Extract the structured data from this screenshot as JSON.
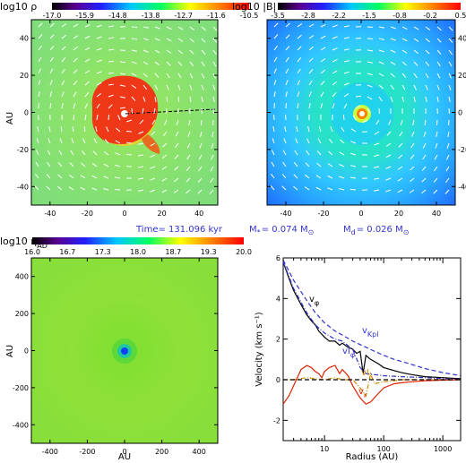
{
  "header": {
    "time_label": "Time= 131.096 kyr",
    "mstar_label": "M",
    "mstar_sub": "*",
    "mstar_value": "= 0.074 M",
    "mstar_sun": "⊙",
    "mdisk_label": "M",
    "mdisk_sub": "d",
    "mdisk_value": "= 0.026 M",
    "mdisk_sun": "⊙"
  },
  "colors": {
    "accent_text": "#3333cc"
  },
  "chart_data": [
    {
      "type": "heatmap",
      "title": "log10 ρ",
      "colorbar_ticks": [
        "-17.0",
        "-15.9",
        "-14.8",
        "-13.8",
        "-12.7",
        "-11.6",
        "-10.5"
      ],
      "colorbar_range": [
        -17.0,
        -10.5
      ],
      "xlim": [
        -50,
        50
      ],
      "ylim": [
        -50,
        50
      ],
      "xticks": [
        "-40",
        "-20",
        "0",
        "20",
        "40"
      ],
      "yticks": [
        "-40",
        "-20",
        "0",
        "20",
        "40"
      ],
      "ylabel": "AU",
      "overlay": "velocity arrows"
    },
    {
      "type": "heatmap",
      "title": "log10 |B|",
      "colorbar_ticks": [
        "-3.5",
        "-2.8",
        "-2.2",
        "-1.5",
        "-0.8",
        "-0.2",
        "0.5"
      ],
      "colorbar_range": [
        -3.5,
        0.5
      ],
      "xlim": [
        -50,
        50
      ],
      "ylim": [
        -50,
        50
      ],
      "xticks": [
        "-40",
        "-20",
        "0",
        "20",
        "40"
      ],
      "yticks": [
        "-40",
        "-20",
        "0",
        "20",
        "40"
      ],
      "overlay": "magnetic field arrows"
    },
    {
      "type": "heatmap",
      "title": "log10 η",
      "title_sub": "AD",
      "colorbar_ticks": [
        "16.0",
        "16.7",
        "17.3",
        "18.0",
        "18.7",
        "19.3",
        "20.0"
      ],
      "colorbar_range": [
        16.0,
        20.0
      ],
      "xlim": [
        -500,
        500
      ],
      "ylim": [
        -500,
        500
      ],
      "xticks": [
        "-400",
        "-200",
        "0",
        "200",
        "400"
      ],
      "yticks": [
        "-400",
        "-200",
        "0",
        "200",
        "400"
      ],
      "xlabel": "AU",
      "ylabel": "AU"
    },
    {
      "type": "line",
      "xlabel": "Radius (AU)",
      "ylabel": "Velocity (km s⁻¹)",
      "xscale": "log",
      "xlim": [
        2,
        2000
      ],
      "ylim": [
        -3,
        6
      ],
      "xticks": [
        10,
        100,
        1000
      ],
      "yticks": [
        -2,
        0,
        2,
        4,
        6
      ],
      "series": [
        {
          "name": "vφ",
          "color": "#000000",
          "dash": "solid",
          "x": [
            2,
            2.5,
            3,
            4,
            5,
            6,
            7,
            8,
            10,
            12,
            15,
            18,
            20,
            25,
            30,
            35,
            40,
            45,
            50,
            60,
            80,
            100,
            150,
            200,
            300,
            500,
            1000,
            2000
          ],
          "y": [
            5.8,
            5.0,
            4.4,
            3.7,
            3.2,
            2.9,
            2.7,
            2.4,
            2.1,
            1.9,
            1.9,
            1.7,
            1.8,
            1.6,
            1.5,
            1.3,
            1.4,
            0.3,
            1.2,
            1.0,
            0.8,
            0.6,
            0.45,
            0.35,
            0.25,
            0.15,
            0.1,
            0.05
          ]
        },
        {
          "name": "vKpl",
          "color": "#3333cc",
          "dash": "dashed",
          "x": [
            2,
            3,
            5,
            7,
            10,
            15,
            20,
            30,
            50,
            70,
            100,
            150,
            200,
            300,
            500,
            1000,
            2000
          ],
          "y": [
            5.9,
            4.9,
            3.9,
            3.3,
            2.8,
            2.4,
            2.2,
            1.9,
            1.6,
            1.4,
            1.2,
            1.0,
            0.9,
            0.75,
            0.55,
            0.35,
            0.2
          ]
        },
        {
          "name": "vIφ",
          "color": "#3333cc",
          "dash": "dashdot",
          "x": [
            2,
            3,
            5,
            7,
            10,
            15,
            20,
            30,
            40,
            50,
            70,
            100,
            200,
            500,
            1000,
            2000
          ],
          "y": [
            5.8,
            4.5,
            3.3,
            2.7,
            2.3,
            2.0,
            1.9,
            1.5,
            0.6,
            0.3,
            0.25,
            0.2,
            0.15,
            0.1,
            0.05,
            0.02
          ]
        },
        {
          "name": "vIr",
          "color": "#cc8800",
          "dash": "dashdot",
          "x": [
            2,
            3,
            5,
            7,
            10,
            15,
            20,
            30,
            40,
            50,
            60,
            70,
            100,
            150,
            200,
            500,
            1000,
            2000
          ],
          "y": [
            0,
            0,
            0.1,
            0.05,
            0,
            0.1,
            0,
            0,
            -0.4,
            -0.8,
            0.3,
            -0.2,
            -0.1,
            -0.05,
            0,
            0,
            0,
            0
          ]
        },
        {
          "name": "vr",
          "color": "#dd2200",
          "dash": "solid",
          "x": [
            2,
            2.5,
            3,
            4,
            5,
            6,
            7,
            8,
            9,
            10,
            12,
            15,
            18,
            20,
            25,
            30,
            40,
            50,
            60,
            80,
            100,
            150,
            200,
            300,
            500,
            1000,
            2000
          ],
          "y": [
            -1.2,
            -0.8,
            -0.3,
            0.5,
            0.7,
            0.6,
            0.4,
            0.3,
            0.1,
            0.4,
            0.6,
            0.7,
            0.3,
            0.5,
            0.2,
            -0.3,
            -0.9,
            -1.2,
            -1.1,
            -0.7,
            -0.4,
            -0.2,
            -0.15,
            -0.1,
            -0.05,
            -0.02,
            0
          ]
        },
        {
          "name": "zero",
          "color": "#000000",
          "dash": "dashed",
          "x": [
            2,
            2000
          ],
          "y": [
            0,
            0
          ]
        }
      ],
      "annotations": [
        "v",
        "φ",
        "v",
        "Kpl",
        "vI",
        "φ",
        "vI",
        "r",
        "v",
        "r"
      ]
    }
  ]
}
